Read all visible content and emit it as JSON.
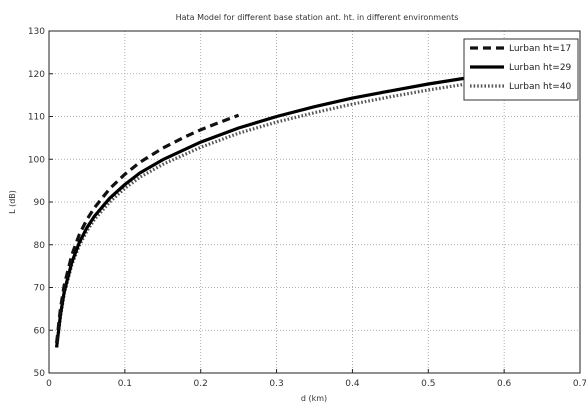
{
  "chart_data": {
    "type": "line",
    "title": "Hata Model for different base station ant. ht. in different environments",
    "xlabel": "d (km)",
    "ylabel": "L (dB)",
    "xlim": [
      0,
      0.7
    ],
    "ylim": [
      50,
      130
    ],
    "xticks": [
      0,
      0.1,
      0.2,
      0.3,
      0.4,
      0.5,
      0.6,
      0.7
    ],
    "xtick_labels": [
      "0",
      "0.1",
      "0.2",
      "0.3",
      "0.4",
      "0.5",
      "0.6",
      "0.7"
    ],
    "yticks": [
      50,
      60,
      70,
      80,
      90,
      100,
      110,
      120,
      130
    ],
    "ytick_labels": [
      "50",
      "60",
      "70",
      "80",
      "90",
      "100",
      "110",
      "120",
      "130"
    ],
    "grid": true,
    "legend_position": "top-right",
    "series": [
      {
        "name": "Lurban ht=17",
        "style": "dashed",
        "color": "#111111",
        "x": [
          0.01,
          0.015,
          0.02,
          0.03,
          0.04,
          0.05,
          0.06,
          0.08,
          0.1,
          0.12,
          0.15,
          0.18,
          0.2,
          0.22,
          0.25
        ],
        "y": [
          57,
          65,
          70.5,
          77.6,
          82.4,
          85.9,
          88.7,
          93.1,
          96.5,
          99.3,
          102.6,
          105.3,
          106.9,
          108.3,
          110.3
        ]
      },
      {
        "name": "Lurban ht=29",
        "style": "solid",
        "color": "#000000",
        "x": [
          0.01,
          0.015,
          0.02,
          0.03,
          0.04,
          0.05,
          0.06,
          0.08,
          0.1,
          0.12,
          0.15,
          0.2,
          0.25,
          0.3,
          0.35,
          0.4,
          0.45,
          0.5,
          0.55
        ],
        "y": [
          56,
          63.5,
          69,
          75.9,
          80.5,
          84,
          86.7,
          90.9,
          94.1,
          96.8,
          99.9,
          104,
          107.3,
          110,
          112.3,
          114.3,
          116,
          117.6,
          119
        ]
      },
      {
        "name": "Lurban ht=40",
        "style": "dotted",
        "color": "#555555",
        "x": [
          0.01,
          0.015,
          0.02,
          0.03,
          0.04,
          0.05,
          0.06,
          0.08,
          0.1,
          0.12,
          0.15,
          0.2,
          0.25,
          0.3,
          0.35,
          0.4,
          0.45,
          0.5,
          0.55,
          0.6,
          0.65
        ],
        "y": [
          56,
          63,
          68.5,
          75.3,
          79.8,
          83.2,
          85.9,
          90,
          93.2,
          95.8,
          98.8,
          102.8,
          106.1,
          108.7,
          110.9,
          112.9,
          114.6,
          116.2,
          117.6,
          118.9,
          120.1
        ]
      }
    ]
  }
}
